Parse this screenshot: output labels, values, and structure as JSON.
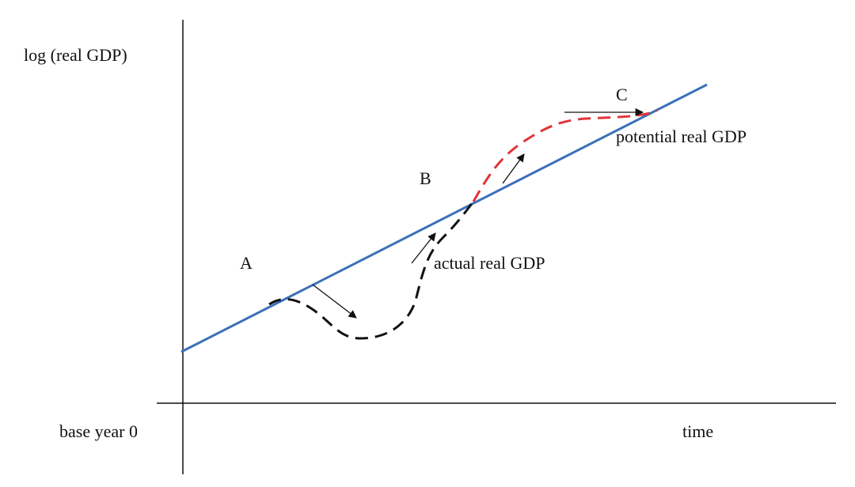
{
  "axes": {
    "y_label": "log (real GDP)",
    "origin_label": "base year 0",
    "x_label": "time"
  },
  "points": [
    {
      "label": "A"
    },
    {
      "label": "B"
    },
    {
      "label": "C"
    }
  ],
  "curves": {
    "potential": "potential real GDP",
    "actual": "actual real GDP"
  }
}
